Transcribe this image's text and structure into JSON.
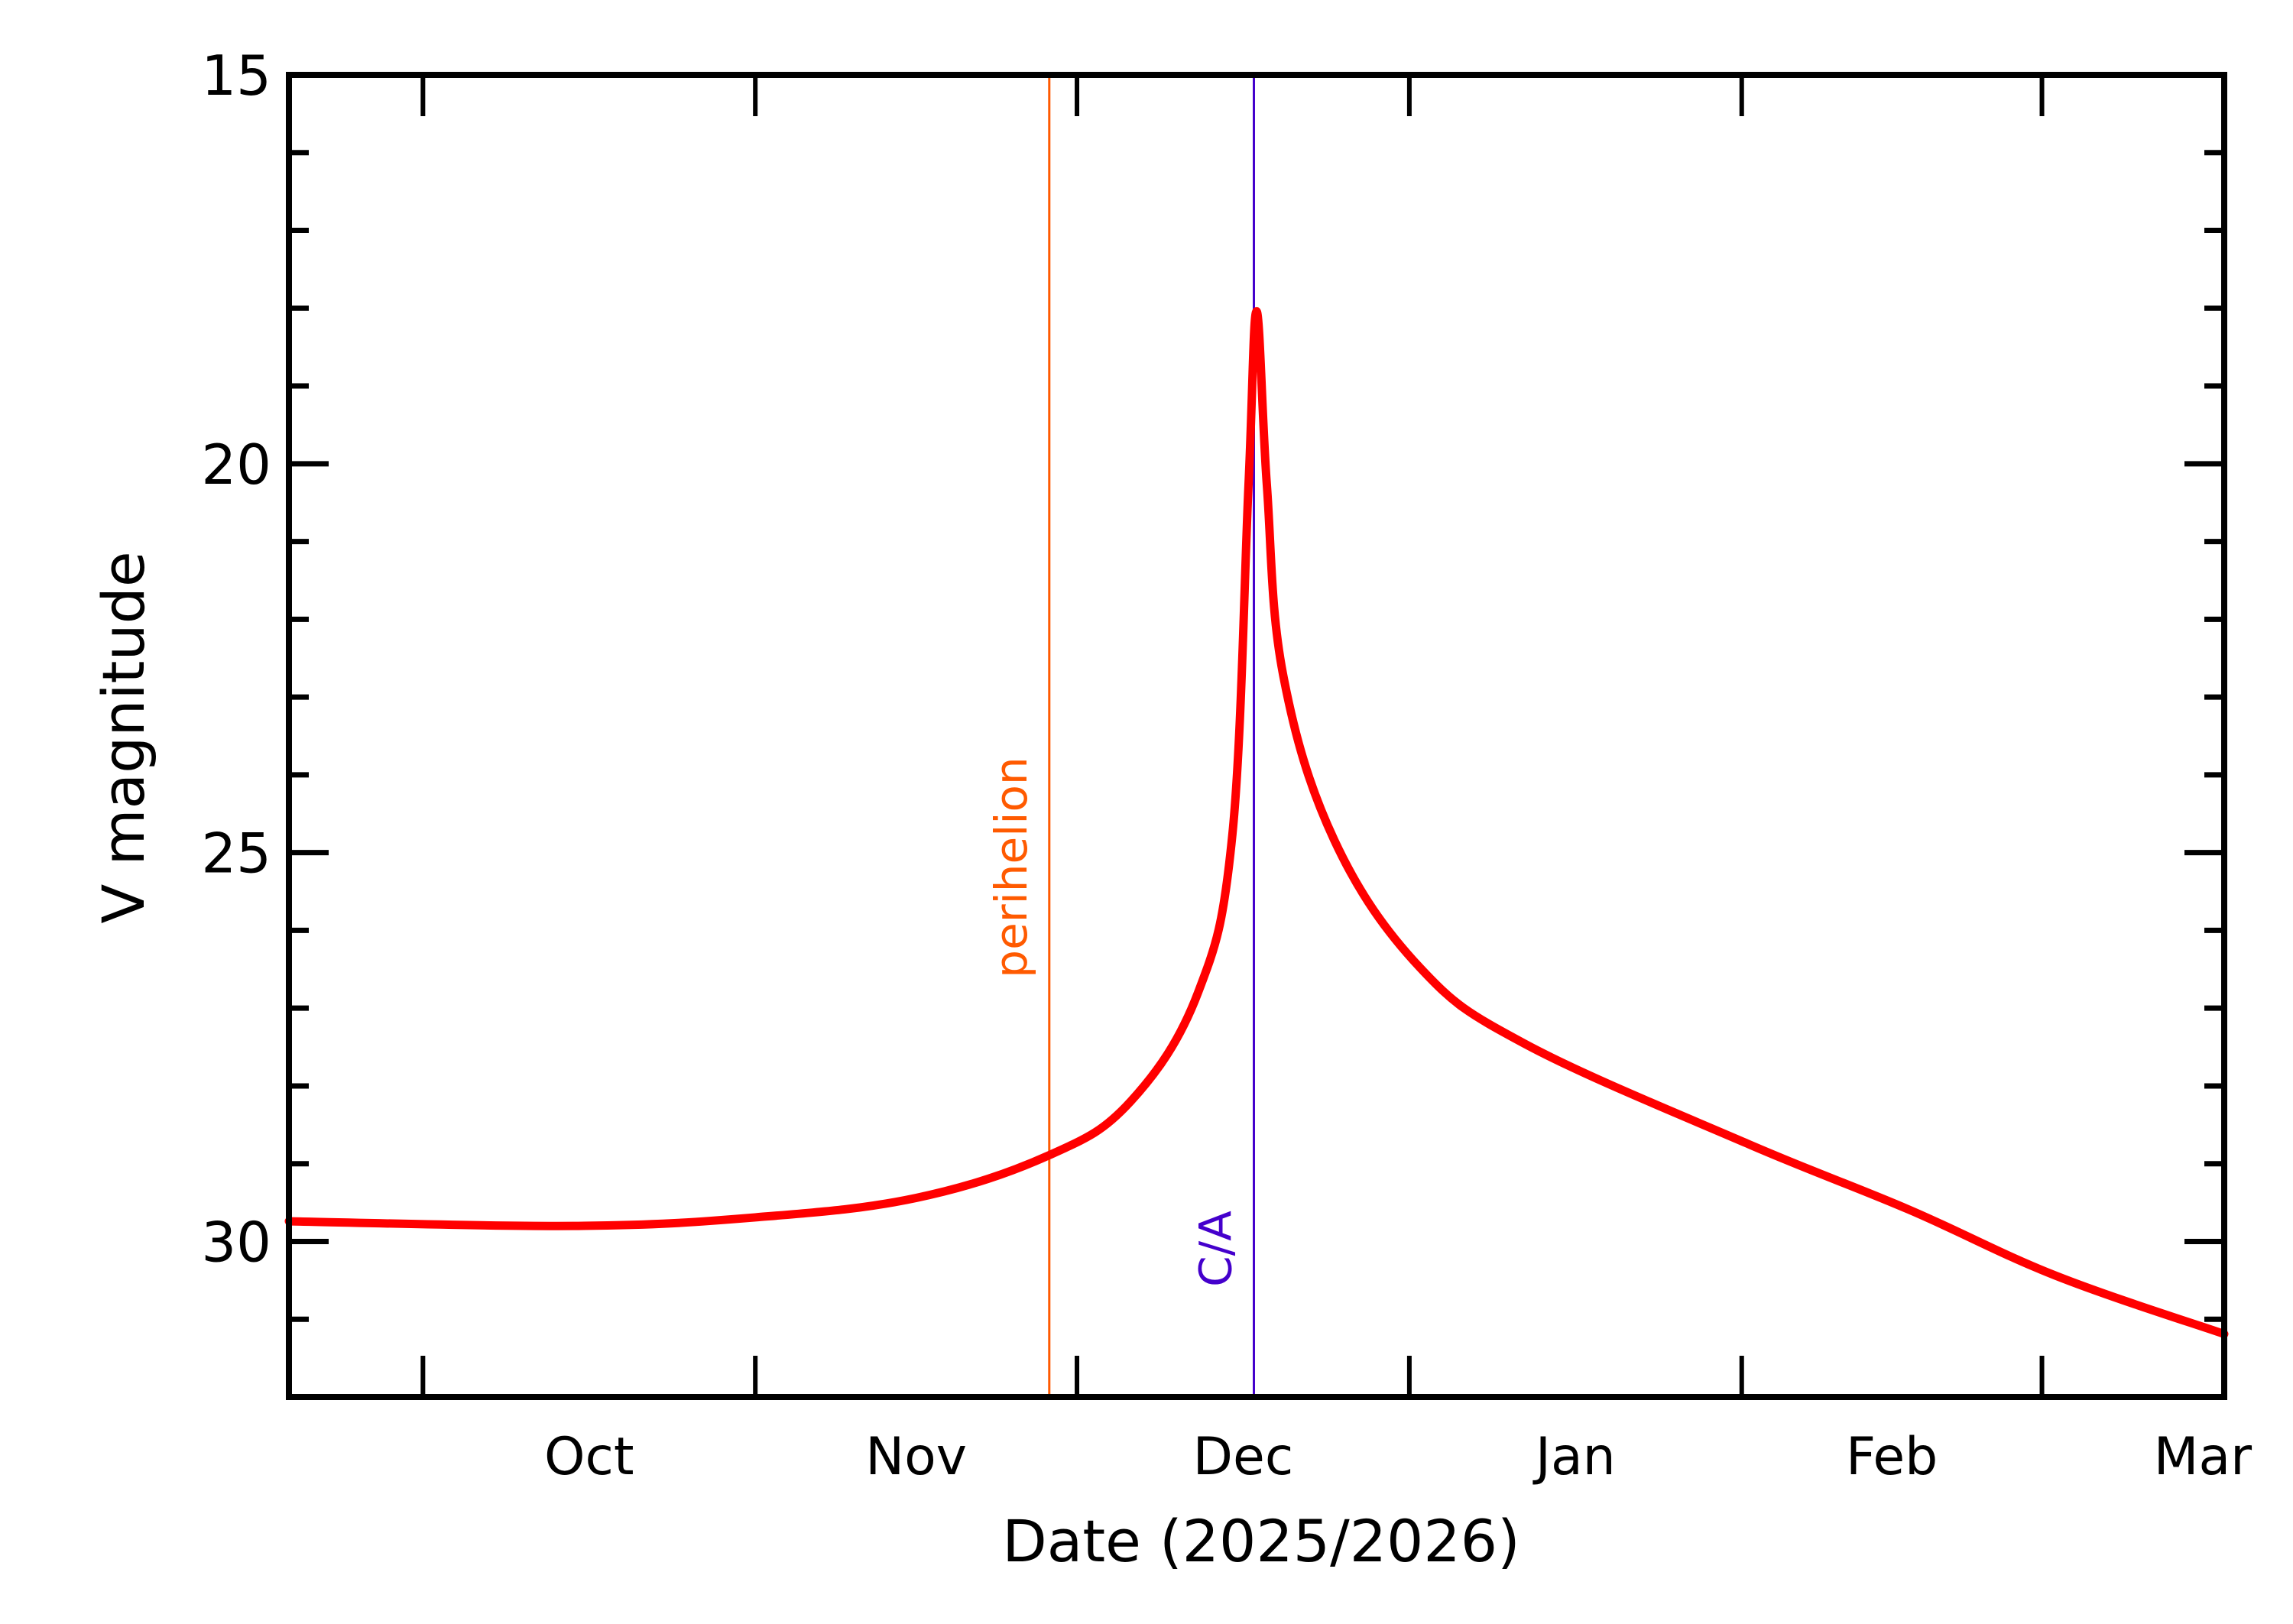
{
  "chart_data": {
    "type": "line",
    "title": "",
    "xlabel": "Date (2025/2026)",
    "ylabel": "V magnitude",
    "ylim": [
      32,
      15
    ],
    "y_inverted": true,
    "xlim": [
      "2025-09-18T12:00",
      "2026-03-18T00:00"
    ],
    "y_ticks": [
      "15",
      "20",
      "25",
      "30"
    ],
    "y_minor_step": 1,
    "x_tick_labels": [
      {
        "label": "Oct",
        "date": "2025-10-16T12:00"
      },
      {
        "label": "Nov",
        "date": "2025-11-16T00:00"
      },
      {
        "label": "Dec",
        "date": "2025-12-16T12:00"
      },
      {
        "label": "Jan",
        "date": "2026-01-16T12:00"
      },
      {
        "label": "Feb",
        "date": "2026-02-15T00:00"
      },
      {
        "label": "Mar",
        "date": "2026-03-16T00:00"
      }
    ],
    "x_major_ticks": [
      "2025-10-01",
      "2025-11-01",
      "2025-12-01",
      "2026-01-01",
      "2026-02-01",
      "2026-03-01"
    ],
    "grid": false,
    "series": [
      {
        "color": "#ff0000",
        "points": [
          [
            "2025-09-18T12:00",
            29.74
          ],
          [
            "2025-10-15T00:00",
            29.8
          ],
          [
            "2025-11-01T00:00",
            29.69
          ],
          [
            "2025-11-16T00:00",
            29.44
          ],
          [
            "2025-11-28T10:00",
            28.89
          ],
          [
            "2025-12-06T00:00",
            28.2
          ],
          [
            "2025-12-12T07:00",
            26.8
          ],
          [
            "2025-12-15T12:00",
            24.76
          ],
          [
            "2025-12-17T00:00",
            20.27
          ],
          [
            "2025-12-17T18:00",
            18.04
          ],
          [
            "2025-12-18T17:00",
            20.27
          ],
          [
            "2025-12-20T05:00",
            22.7
          ],
          [
            "2025-12-25T00:00",
            24.84
          ],
          [
            "2026-01-02T00:00",
            26.48
          ],
          [
            "2026-01-11T19:00",
            27.46
          ],
          [
            "2026-02-01T12:00",
            28.74
          ],
          [
            "2026-02-16T14:00",
            29.59
          ],
          [
            "2026-03-02T07:00",
            30.44
          ],
          [
            "2026-03-18T00:00",
            31.19
          ]
        ]
      }
    ],
    "annotations": [
      {
        "label": "perihelion",
        "date": "2025-11-28T10:00",
        "color": "#ff5a00"
      },
      {
        "label": "C/A",
        "date": "2025-12-17T12:00",
        "color": "#4400cc"
      }
    ]
  }
}
